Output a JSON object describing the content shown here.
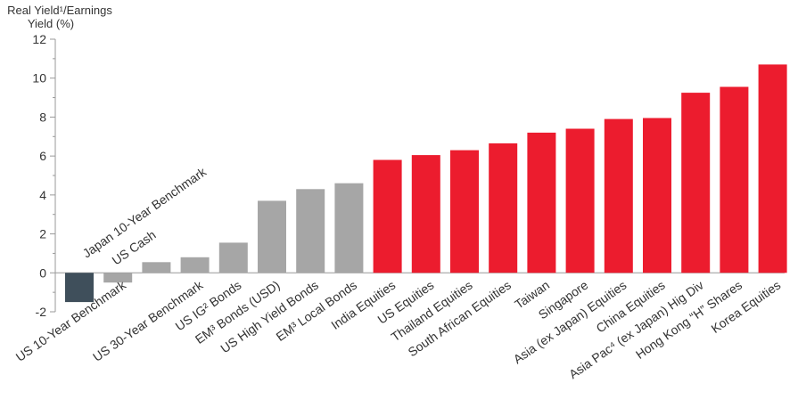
{
  "chart_data": {
    "type": "bar",
    "ylabel_line1": "Real Yield¹/Earnings",
    "ylabel_line2": "Yield (%)",
    "ylim": [
      -2,
      12
    ],
    "yticks": [
      "12",
      "10",
      "8",
      "6",
      "4",
      "2",
      "0",
      "-2"
    ],
    "ytick_values": [
      12,
      10,
      8,
      6,
      4,
      2,
      0,
      -2
    ],
    "grid": false,
    "colors": {
      "dark": "#3f4f5b",
      "gray": "#a6a6a6",
      "red": "#ec1c2e"
    },
    "categories": [
      "Japan 10-Year Benchmark",
      "US 10-Year Benchmark",
      "US Cash",
      "US 30-Year Benchmark",
      "US IG² Bonds",
      "EM³ Bonds (USD)",
      "US High Yield Bonds",
      "EM³ Local Bonds",
      "India Equities",
      "US Equities",
      "Thailand Equities",
      "South African Equities",
      "Taiwan",
      "Singapore",
      "Asia (ex Japan) Equities",
      "China Equities",
      "Asia Pac⁴ (ex Japan) Hig Div",
      "Hong Kong “H” Shares",
      "Korea Equities"
    ],
    "values": [
      -1.5,
      -0.5,
      0.55,
      0.8,
      1.55,
      3.7,
      4.3,
      4.6,
      5.8,
      6.05,
      6.3,
      6.65,
      7.2,
      7.4,
      7.9,
      7.95,
      9.25,
      9.55,
      10.7
    ],
    "bar_colors": [
      "dark",
      "gray",
      "gray",
      "gray",
      "gray",
      "gray",
      "gray",
      "gray",
      "red",
      "red",
      "red",
      "red",
      "red",
      "red",
      "red",
      "red",
      "red",
      "red",
      "red"
    ],
    "label_sides": [
      "above",
      "below",
      "above",
      "below",
      "below",
      "below",
      "below",
      "below",
      "below",
      "below",
      "below",
      "below",
      "below",
      "below",
      "below",
      "below",
      "below",
      "below",
      "below"
    ]
  }
}
